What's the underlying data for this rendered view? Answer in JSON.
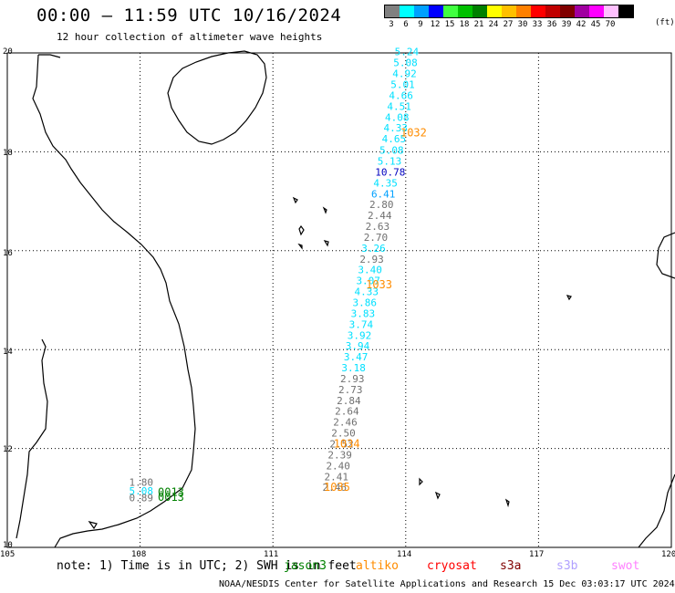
{
  "title": "00:00 – 11:59 UTC 10/16/2024",
  "subtitle": "12 hour collection of altimeter wave heights",
  "legend": {
    "unit": "(ft)",
    "bins": [
      {
        "label": "3",
        "color": "#808080"
      },
      {
        "label": "6",
        "color": "#00ffff"
      },
      {
        "label": "9",
        "color": "#00a0ff"
      },
      {
        "label": "12",
        "color": "#0000ff"
      },
      {
        "label": "15",
        "color": "#40ff40"
      },
      {
        "label": "18",
        "color": "#00c000"
      },
      {
        "label": "21",
        "color": "#008000"
      },
      {
        "label": "24",
        "color": "#ffff00"
      },
      {
        "label": "27",
        "color": "#ffc000"
      },
      {
        "label": "30",
        "color": "#ff8000"
      },
      {
        "label": "33",
        "color": "#ff0000"
      },
      {
        "label": "36",
        "color": "#c00000"
      },
      {
        "label": "39",
        "color": "#800000"
      },
      {
        "label": "42",
        "color": "#a000a0"
      },
      {
        "label": "45",
        "color": "#ff00ff"
      },
      {
        "label": "70",
        "color": "#ffc0ff"
      },
      {
        "label": "",
        "color": "#000000"
      }
    ]
  },
  "axes": {
    "lat_labels": [
      "20",
      "18",
      "16",
      "14",
      "12",
      "10"
    ],
    "lon_labels": [
      "105",
      "108",
      "111",
      "114",
      "117",
      "120"
    ]
  },
  "observations": [
    {
      "value": "5.24",
      "lon": 113.75,
      "lat": 19.95,
      "color": "#00e0ff"
    },
    {
      "value": "5.08",
      "lon": 113.72,
      "lat": 19.73,
      "color": "#00e0ff"
    },
    {
      "value": "4.92",
      "lon": 113.7,
      "lat": 19.51,
      "color": "#00e0ff"
    },
    {
      "value": "5.01",
      "lon": 113.66,
      "lat": 19.29,
      "color": "#00e0ff"
    },
    {
      "value": "4.66",
      "lon": 113.62,
      "lat": 19.07,
      "color": "#00e0ff"
    },
    {
      "value": "4.51",
      "lon": 113.58,
      "lat": 18.85,
      "color": "#00e0ff"
    },
    {
      "value": "4.08",
      "lon": 113.53,
      "lat": 18.63,
      "color": "#00e0ff"
    },
    {
      "value": "4.33",
      "lon": 113.5,
      "lat": 18.41,
      "color": "#00e0ff"
    },
    {
      "value": "4.65",
      "lon": 113.46,
      "lat": 18.19,
      "color": "#00e0ff"
    },
    {
      "value": "5.08",
      "lon": 113.41,
      "lat": 17.96,
      "color": "#00e0ff"
    },
    {
      "value": "5.13",
      "lon": 113.36,
      "lat": 17.74,
      "color": "#00e0ff"
    },
    {
      "value": "10.78",
      "lon": 113.31,
      "lat": 17.52,
      "color": "#0000c0"
    },
    {
      "value": "4.35",
      "lon": 113.27,
      "lat": 17.3,
      "color": "#00e0ff"
    },
    {
      "value": "6.41",
      "lon": 113.22,
      "lat": 17.08,
      "color": "#00a0ff"
    },
    {
      "value": "2.80",
      "lon": 113.18,
      "lat": 16.86,
      "color": "#707070"
    },
    {
      "value": "2.44",
      "lon": 113.14,
      "lat": 16.64,
      "color": "#707070"
    },
    {
      "value": "2.63",
      "lon": 113.09,
      "lat": 16.42,
      "color": "#707070"
    },
    {
      "value": "2.70",
      "lon": 113.05,
      "lat": 16.2,
      "color": "#707070"
    },
    {
      "value": "3.26",
      "lon": 113.0,
      "lat": 15.98,
      "color": "#00e0ff"
    },
    {
      "value": "2.93",
      "lon": 112.96,
      "lat": 15.76,
      "color": "#707070"
    },
    {
      "value": "3.40",
      "lon": 112.92,
      "lat": 15.54,
      "color": "#00e0ff"
    },
    {
      "value": "3.07",
      "lon": 112.88,
      "lat": 15.32,
      "color": "#00e0ff"
    },
    {
      "value": "4.33",
      "lon": 112.84,
      "lat": 15.1,
      "color": "#00e0ff"
    },
    {
      "value": "3.86",
      "lon": 112.8,
      "lat": 14.88,
      "color": "#00e0ff"
    },
    {
      "value": "3.83",
      "lon": 112.76,
      "lat": 14.66,
      "color": "#00e0ff"
    },
    {
      "value": "3.74",
      "lon": 112.72,
      "lat": 14.44,
      "color": "#00e0ff"
    },
    {
      "value": "3.92",
      "lon": 112.68,
      "lat": 14.22,
      "color": "#00e0ff"
    },
    {
      "value": "3.94",
      "lon": 112.64,
      "lat": 14.0,
      "color": "#00e0ff"
    },
    {
      "value": "3.47",
      "lon": 112.6,
      "lat": 13.78,
      "color": "#00e0ff"
    },
    {
      "value": "3.18",
      "lon": 112.55,
      "lat": 13.56,
      "color": "#00e0ff"
    },
    {
      "value": "2.93",
      "lon": 112.52,
      "lat": 13.34,
      "color": "#707070"
    },
    {
      "value": "2.73",
      "lon": 112.48,
      "lat": 13.12,
      "color": "#707070"
    },
    {
      "value": "2.84",
      "lon": 112.44,
      "lat": 12.9,
      "color": "#707070"
    },
    {
      "value": "2.64",
      "lon": 112.4,
      "lat": 12.68,
      "color": "#707070"
    },
    {
      "value": "2.46",
      "lon": 112.36,
      "lat": 12.46,
      "color": "#707070"
    },
    {
      "value": "2.50",
      "lon": 112.32,
      "lat": 12.24,
      "color": "#707070"
    },
    {
      "value": "2.52",
      "lon": 112.28,
      "lat": 12.02,
      "color": "#707070"
    },
    {
      "value": "2.39",
      "lon": 112.24,
      "lat": 11.8,
      "color": "#707070"
    },
    {
      "value": "2.40",
      "lon": 112.2,
      "lat": 11.58,
      "color": "#707070"
    },
    {
      "value": "2.41",
      "lon": 112.16,
      "lat": 11.36,
      "color": "#707070"
    },
    {
      "value": "2.46",
      "lon": 112.12,
      "lat": 11.14,
      "color": "#707070"
    },
    {
      "value": "1.80",
      "lon": 107.75,
      "lat": 11.25,
      "color": "#707070"
    },
    {
      "value": "5.08",
      "lon": 107.75,
      "lat": 11.07,
      "color": "#00e0ff"
    },
    {
      "value": "0.89",
      "lon": 107.75,
      "lat": 10.93,
      "color": "#707070"
    }
  ],
  "passes": [
    {
      "label": "1032",
      "lon": 113.88,
      "lat": 18.31,
      "color": "#ff8c00"
    },
    {
      "label": "1033",
      "lon": 113.1,
      "lat": 15.24,
      "color": "#ff8c00"
    },
    {
      "label": "1034",
      "lon": 112.37,
      "lat": 12.02,
      "color": "#ff8c00"
    },
    {
      "label": "1035",
      "lon": 112.15,
      "lat": 11.14,
      "color": "#ff8c00"
    },
    {
      "label": "0013",
      "lon": 108.4,
      "lat": 11.04,
      "color": "#008000"
    },
    {
      "label": "0013",
      "lon": 108.4,
      "lat": 10.94,
      "color": "#008000"
    }
  ],
  "footer": {
    "note": "note:  1) Time is in UTC;  2) SWH is in feet",
    "satellites": [
      {
        "name": "jason3",
        "color": "#008000"
      },
      {
        "name": "altiko",
        "color": "#ff8c00"
      },
      {
        "name": "cryosat",
        "color": "#ff0000"
      },
      {
        "name": "s3a",
        "color": "#800000"
      },
      {
        "name": "s3b",
        "color": "#b0a0ff"
      },
      {
        "name": "swot",
        "color": "#ff80ff"
      }
    ],
    "credit": "NOAA/NESDIS Center for Satellite Applications and Research     15 Dec 03:03:17 UTC 2024"
  }
}
